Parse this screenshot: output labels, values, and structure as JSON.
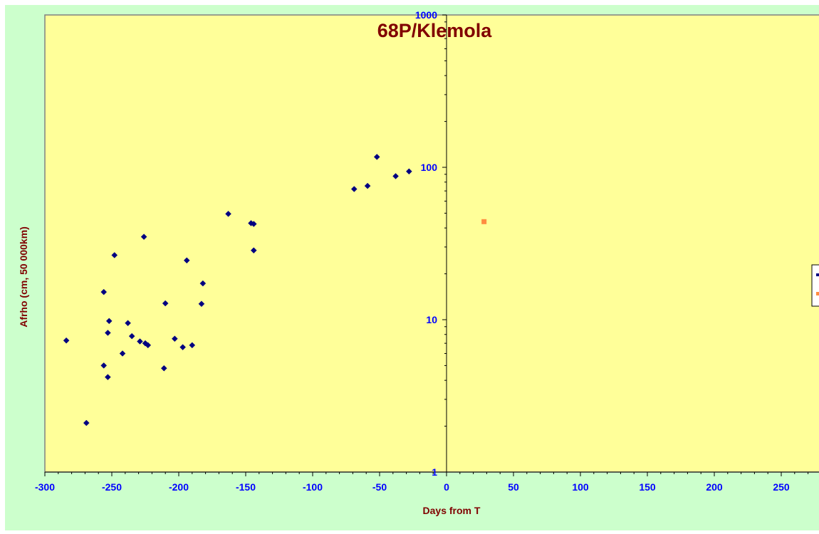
{
  "chart_data": {
    "type": "scatter",
    "title": "68P/Klemola",
    "xlabel": "Days from  T",
    "ylabel": "Afrho (cm, 50 000km)",
    "xlim": [
      -300,
      280
    ],
    "ylim": [
      1,
      1000
    ],
    "yscale": "log",
    "x_ticks": [
      -300,
      -250,
      -200,
      -150,
      -100,
      -50,
      0,
      50,
      100,
      150,
      200,
      250
    ],
    "y_ticks": [
      1,
      10,
      100,
      1000
    ],
    "grid": false,
    "legend_position": "right (partially cut off)",
    "colors": {
      "plot_background": "#ffff99",
      "chart_background": "#ccffcc",
      "series_1": "#000080",
      "series_2": "#ff8c40",
      "title": "#800000",
      "tick_labels": "#0000ff"
    },
    "series": [
      {
        "marker": "diamond",
        "points": [
          [
            -284,
            7.3
          ],
          [
            -269,
            2.1
          ],
          [
            -256,
            15.2
          ],
          [
            -256,
            5.0
          ],
          [
            -253,
            4.2
          ],
          [
            -253,
            8.2
          ],
          [
            -252,
            9.8
          ],
          [
            -248,
            26.5
          ],
          [
            -242,
            6.0
          ],
          [
            -238,
            9.5
          ],
          [
            -235,
            7.8
          ],
          [
            -229,
            7.2
          ],
          [
            -226,
            35.0
          ],
          [
            -225,
            7.0
          ],
          [
            -223,
            6.8
          ],
          [
            -211,
            4.8
          ],
          [
            -210,
            12.8
          ],
          [
            -203,
            7.5
          ],
          [
            -197,
            6.6
          ],
          [
            -194,
            24.5
          ],
          [
            -190,
            6.8
          ],
          [
            -183,
            12.7
          ],
          [
            -182,
            17.3
          ],
          [
            -163,
            49.5
          ],
          [
            -146,
            43.0
          ],
          [
            -144,
            28.5
          ],
          [
            -144,
            42.5
          ],
          [
            -69,
            72.0
          ],
          [
            -59,
            75.5
          ],
          [
            -52,
            117.0
          ],
          [
            -38,
            87.5
          ],
          [
            -28,
            94.0
          ]
        ]
      },
      {
        "marker": "square",
        "points": [
          [
            28,
            44.0
          ]
        ]
      }
    ]
  }
}
